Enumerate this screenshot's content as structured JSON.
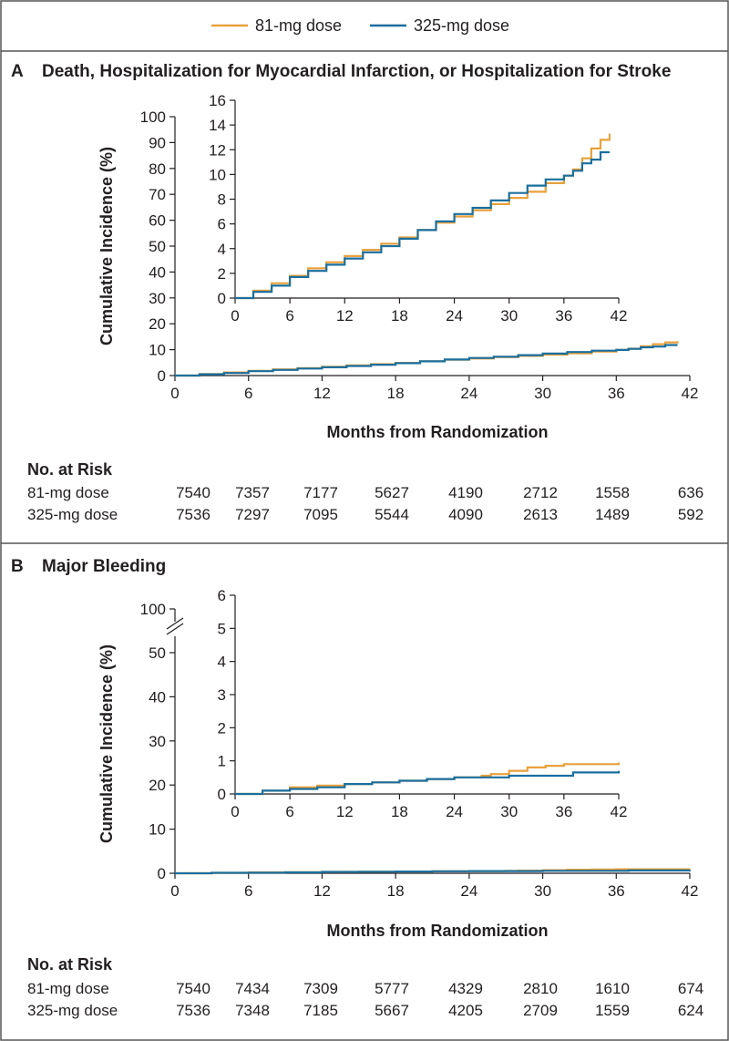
{
  "legend": [
    {
      "label": "81-mg dose",
      "color": "#e8a13c"
    },
    {
      "label": "325-mg dose",
      "color": "#1b6f9e"
    }
  ],
  "chart_data": [
    {
      "type": "line",
      "panel_letter": "A",
      "title": "Death, Hospitalization for Myocardial Infarction, or Hospitalization for Stroke",
      "xlabel": "Months from Randomization",
      "ylabel": "Cumulative Incidence (%)",
      "xlim": [
        0,
        42
      ],
      "ylim": [
        0,
        100
      ],
      "xticks": [
        0,
        6,
        12,
        18,
        24,
        30,
        36,
        42
      ],
      "yticks": [
        0,
        10,
        20,
        30,
        40,
        50,
        60,
        70,
        80,
        90,
        100
      ],
      "inset": {
        "xlim": [
          0,
          42
        ],
        "ylim": [
          0,
          16
        ],
        "xticks": [
          0,
          6,
          12,
          18,
          24,
          30,
          36,
          42
        ],
        "yticks": [
          0,
          2,
          4,
          6,
          8,
          10,
          12,
          14,
          16
        ]
      },
      "series": [
        {
          "name": "81-mg dose",
          "x": [
            0,
            2,
            4,
            6,
            8,
            10,
            12,
            14,
            16,
            18,
            20,
            22,
            24,
            26,
            28,
            30,
            32,
            34,
            36,
            37,
            38,
            39,
            40,
            41
          ],
          "y": [
            0,
            0.6,
            1.2,
            1.8,
            2.4,
            2.9,
            3.4,
            3.9,
            4.4,
            4.9,
            5.5,
            6.1,
            6.6,
            7.1,
            7.6,
            8.1,
            8.6,
            9.3,
            9.9,
            10.4,
            11.3,
            12.1,
            12.8,
            13.3
          ]
        },
        {
          "name": "325-mg dose",
          "x": [
            0,
            2,
            4,
            6,
            8,
            10,
            12,
            14,
            16,
            18,
            20,
            22,
            24,
            26,
            28,
            30,
            32,
            34,
            36,
            37,
            38,
            39,
            40,
            41
          ],
          "y": [
            0,
            0.5,
            1.0,
            1.7,
            2.2,
            2.7,
            3.2,
            3.7,
            4.2,
            4.8,
            5.5,
            6.2,
            6.8,
            7.3,
            7.9,
            8.5,
            9.1,
            9.6,
            9.9,
            10.3,
            10.9,
            11.2,
            11.8,
            11.8
          ]
        }
      ],
      "risk_table": {
        "header": "No. at Risk",
        "rows": [
          {
            "label": "81-mg dose",
            "values": [
              7540,
              7357,
              7177,
              5627,
              4190,
              2712,
              1558,
              636
            ]
          },
          {
            "label": "325-mg dose",
            "values": [
              7536,
              7297,
              7095,
              5544,
              4090,
              2613,
              1489,
              592
            ]
          }
        ]
      }
    },
    {
      "type": "line",
      "panel_letter": "B",
      "title": "Major Bleeding",
      "xlabel": "Months from Randomization",
      "ylabel": "Cumulative Incidence (%)",
      "xlim": [
        0,
        42
      ],
      "ylim": [
        0,
        100
      ],
      "axis_break": true,
      "xticks": [
        0,
        6,
        12,
        18,
        24,
        30,
        36,
        42
      ],
      "yticks": [
        0,
        10,
        20,
        30,
        40,
        50,
        100
      ],
      "inset": {
        "xlim": [
          0,
          42
        ],
        "ylim": [
          0,
          6
        ],
        "xticks": [
          0,
          6,
          12,
          18,
          24,
          30,
          36,
          42
        ],
        "yticks": [
          0,
          1,
          2,
          3,
          4,
          5,
          6
        ]
      },
      "series": [
        {
          "name": "81-mg dose",
          "x": [
            0,
            3,
            6,
            9,
            12,
            15,
            18,
            21,
            24,
            27,
            28,
            30,
            32,
            34,
            36,
            42
          ],
          "y": [
            0,
            0.1,
            0.2,
            0.25,
            0.3,
            0.35,
            0.4,
            0.45,
            0.5,
            0.55,
            0.6,
            0.7,
            0.8,
            0.85,
            0.9,
            0.95
          ]
        },
        {
          "name": "325-mg dose",
          "x": [
            0,
            3,
            6,
            9,
            12,
            15,
            18,
            21,
            24,
            27,
            30,
            32,
            34,
            36,
            37,
            42
          ],
          "y": [
            0,
            0.1,
            0.15,
            0.2,
            0.3,
            0.35,
            0.4,
            0.45,
            0.5,
            0.5,
            0.55,
            0.55,
            0.55,
            0.55,
            0.65,
            0.7
          ]
        }
      ],
      "risk_table": {
        "header": "No. at Risk",
        "rows": [
          {
            "label": "81-mg dose",
            "values": [
              7540,
              7434,
              7309,
              5777,
              4329,
              2810,
              1610,
              674
            ]
          },
          {
            "label": "325-mg dose",
            "values": [
              7536,
              7348,
              7185,
              5667,
              4205,
              2709,
              1559,
              624
            ]
          }
        ]
      }
    }
  ]
}
